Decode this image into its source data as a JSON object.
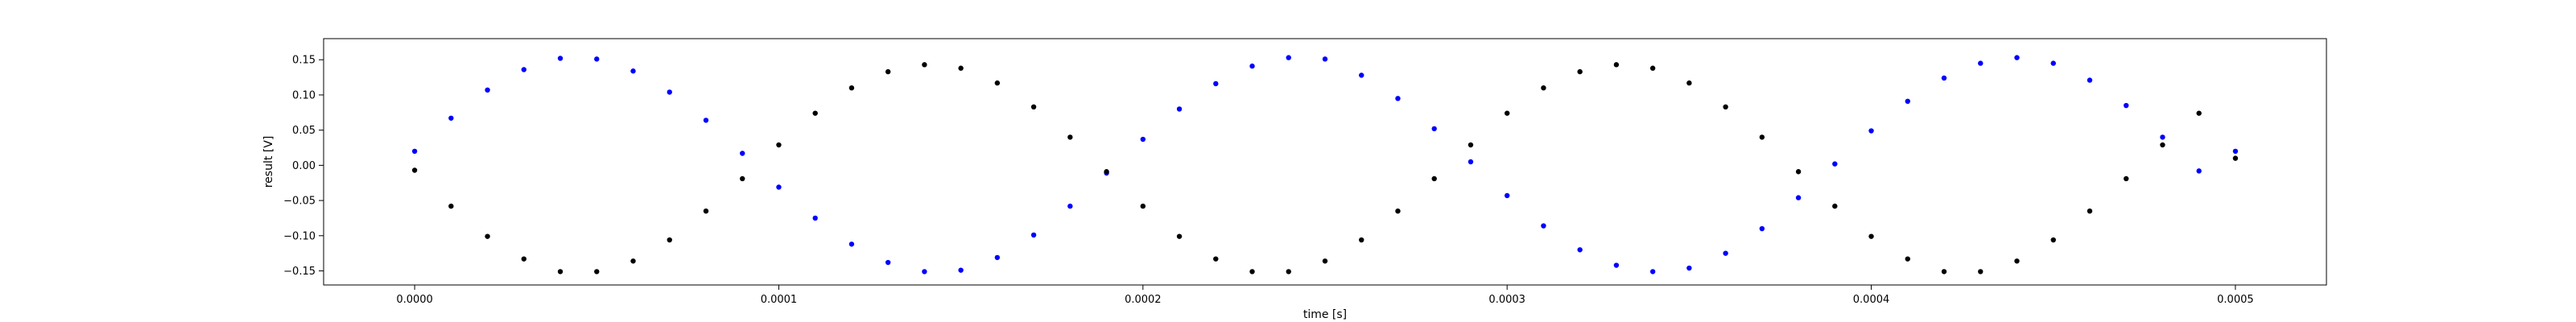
{
  "chart_data": {
    "type": "scatter",
    "title": "",
    "xlabel": "time [s]",
    "ylabel": "result [V]",
    "xlim": [
      -2.5e-05,
      0.000525
    ],
    "ylim": [
      -0.17,
      0.18
    ],
    "grid": false,
    "legend": "none",
    "x_ticks": [
      {
        "value": 0.0,
        "label": "0.0000"
      },
      {
        "value": 0.0001,
        "label": "0.0001"
      },
      {
        "value": 0.0002,
        "label": "0.0002"
      },
      {
        "value": 0.0003,
        "label": "0.0003"
      },
      {
        "value": 0.0004,
        "label": "0.0004"
      },
      {
        "value": 0.0005,
        "label": "0.0005"
      }
    ],
    "y_ticks": [
      {
        "value": 0.15,
        "label": "0.15"
      },
      {
        "value": 0.1,
        "label": "0.10"
      },
      {
        "value": 0.05,
        "label": "0.05"
      },
      {
        "value": 0.0,
        "label": "0.00"
      },
      {
        "value": -0.05,
        "label": "−0.05"
      },
      {
        "value": -0.1,
        "label": "−0.10"
      },
      {
        "value": -0.15,
        "label": "−0.15"
      }
    ],
    "series": [
      {
        "color": "#0000ff",
        "marker": "dot",
        "x": [
          0.0,
          1e-05,
          2e-05,
          3e-05,
          4e-05,
          5e-05,
          6e-05,
          7e-05,
          8e-05,
          9e-05,
          0.0001,
          0.00011,
          0.00012,
          0.00013,
          0.00014,
          0.00015,
          0.00016,
          0.00017,
          0.00018,
          0.00019,
          0.0002,
          0.00021,
          0.00022,
          0.00023,
          0.00024,
          0.00025,
          0.00026,
          0.00027,
          0.00028,
          0.00029,
          0.0003,
          0.00031,
          0.00032,
          0.00033,
          0.00034,
          0.00035,
          0.00036,
          0.00037,
          0.00038,
          0.00039,
          0.0004,
          0.00041,
          0.00042,
          0.00043,
          0.00044,
          0.00045,
          0.00046,
          0.00047,
          0.00048,
          0.00049,
          0.0005
        ],
        "y": [
          0.02,
          0.067,
          0.107,
          0.136,
          0.152,
          0.151,
          0.134,
          0.104,
          0.064,
          0.017,
          -0.031,
          -0.075,
          -0.112,
          -0.138,
          -0.151,
          -0.149,
          -0.131,
          -0.099,
          -0.058,
          -0.011,
          0.037,
          0.08,
          0.116,
          0.141,
          0.153,
          0.151,
          0.128,
          0.095,
          0.052,
          0.005,
          -0.043,
          -0.086,
          -0.12,
          -0.142,
          -0.151,
          -0.146,
          -0.125,
          -0.09,
          -0.046,
          0.002,
          0.049,
          0.091,
          0.124,
          0.145,
          0.153,
          0.145,
          0.121,
          0.085,
          0.04,
          -0.008,
          0.02
        ]
      },
      {
        "color": "#000000",
        "marker": "dot",
        "x": [
          0.0,
          1e-05,
          2e-05,
          3e-05,
          4e-05,
          5e-05,
          6e-05,
          7e-05,
          8e-05,
          9e-05,
          0.0001,
          0.00011,
          0.00012,
          0.00013,
          0.00014,
          0.00015,
          0.00016,
          0.00017,
          0.00018,
          0.00019,
          0.0002,
          0.00021,
          0.00022,
          0.00023,
          0.00024,
          0.00025,
          0.00026,
          0.00027,
          0.00028,
          0.00029,
          0.0003,
          0.00031,
          0.00032,
          0.00033,
          0.00034,
          0.00035,
          0.00036,
          0.00037,
          0.00038,
          0.00039,
          0.0004,
          0.00041,
          0.00042,
          0.00043,
          0.00044,
          0.00045,
          0.00046,
          0.00047,
          0.00048,
          0.00049,
          0.0005
        ],
        "y": [
          -0.007,
          -0.058,
          -0.101,
          -0.133,
          -0.151,
          -0.151,
          -0.136,
          -0.106,
          -0.065,
          -0.019,
          0.029,
          0.074,
          0.11,
          0.133,
          0.143,
          0.138,
          0.117,
          0.083,
          0.04,
          -0.009,
          -0.058,
          -0.101,
          -0.133,
          -0.151,
          -0.151,
          -0.136,
          -0.106,
          -0.065,
          -0.019,
          0.029,
          0.074,
          0.11,
          0.133,
          0.143,
          0.138,
          0.117,
          0.083,
          0.04,
          -0.009,
          -0.058,
          -0.101,
          -0.133,
          -0.151,
          -0.151,
          -0.136,
          -0.106,
          -0.065,
          -0.019,
          0.029,
          0.074,
          0.01
        ]
      }
    ]
  }
}
